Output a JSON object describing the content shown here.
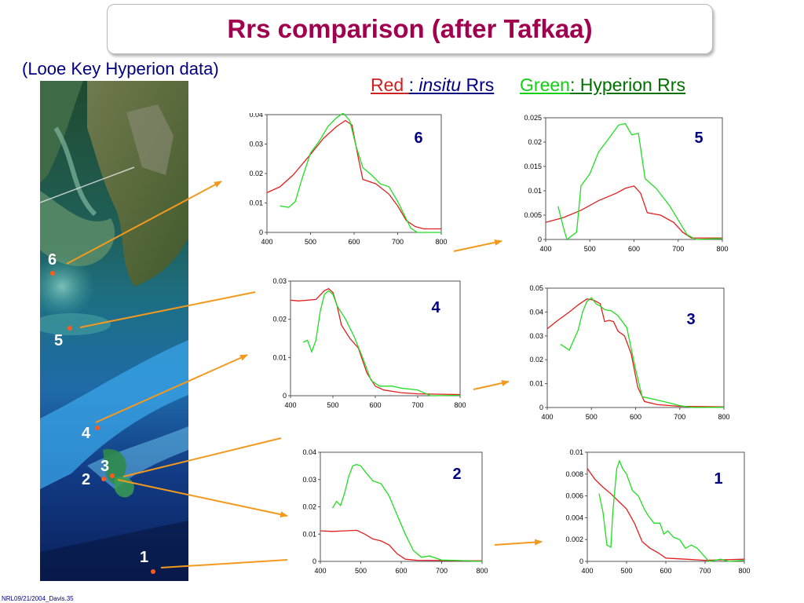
{
  "title": "Rrs comparison (after Tafkaa)",
  "subtitle": "(Looe Key Hyperion data)",
  "legend": {
    "red_word": "Red",
    "red_colon": ":",
    "red_italic": "insitu",
    "red_rest": " Rrs",
    "green_word": "Green",
    "green_colon": ":",
    "green_rest": " Hyperion Rrs"
  },
  "colors": {
    "insitu": "#e02020",
    "hyperion": "#22dd22",
    "arrow": "#f39a1e",
    "title": "#a0004e",
    "text": "#000080"
  },
  "site_labels": [
    "6",
    "5",
    "4",
    "3",
    "2",
    "1"
  ],
  "footer": "NRL09/21/2004_Davis.35",
  "chart_data": [
    {
      "id": "6",
      "type": "line",
      "label": "6",
      "x": [
        400,
        500,
        600,
        700,
        800
      ],
      "xlim": [
        400,
        800
      ],
      "ylim": [
        0,
        0.04
      ],
      "yticks": [
        "0",
        "0.01",
        "0.02",
        "0.03",
        "0.04"
      ],
      "series": [
        {
          "role": "insitu",
          "points": [
            [
              400,
              0.0135
            ],
            [
              430,
              0.0155
            ],
            [
              460,
              0.0195
            ],
            [
              500,
              0.0265
            ],
            [
              530,
              0.032
            ],
            [
              560,
              0.036
            ],
            [
              580,
              0.038
            ],
            [
              595,
              0.0365
            ],
            [
              610,
              0.025
            ],
            [
              620,
              0.018
            ],
            [
              650,
              0.0165
            ],
            [
              680,
              0.013
            ],
            [
              700,
              0.009
            ],
            [
              720,
              0.004
            ],
            [
              740,
              0.002
            ],
            [
              760,
              0.0012
            ],
            [
              800,
              0.0012
            ]
          ]
        },
        {
          "role": "hyperion",
          "points": [
            [
              430,
              0.009
            ],
            [
              450,
              0.0085
            ],
            [
              465,
              0.0105
            ],
            [
              480,
              0.018
            ],
            [
              500,
              0.027
            ],
            [
              520,
              0.031
            ],
            [
              540,
              0.036
            ],
            [
              560,
              0.039
            ],
            [
              575,
              0.0405
            ],
            [
              590,
              0.038
            ],
            [
              605,
              0.029
            ],
            [
              620,
              0.022
            ],
            [
              640,
              0.0195
            ],
            [
              660,
              0.0165
            ],
            [
              680,
              0.0155
            ],
            [
              700,
              0.0105
            ],
            [
              715,
              0.006
            ],
            [
              730,
              0.0015
            ],
            [
              745,
              0
            ],
            [
              800,
              0
            ]
          ]
        }
      ]
    },
    {
      "id": "5",
      "type": "line",
      "label": "5",
      "x": [
        400,
        500,
        600,
        700,
        800
      ],
      "xlim": [
        400,
        800
      ],
      "ylim": [
        0,
        0.025
      ],
      "yticks": [
        "0",
        "0.005",
        "0.01",
        "0.015",
        "0.02",
        "0.025"
      ],
      "series": [
        {
          "role": "insitu",
          "points": [
            [
              400,
              0.0035
            ],
            [
              440,
              0.0045
            ],
            [
              480,
              0.006
            ],
            [
              520,
              0.008
            ],
            [
              560,
              0.0095
            ],
            [
              580,
              0.0105
            ],
            [
              600,
              0.011
            ],
            [
              615,
              0.0095
            ],
            [
              630,
              0.0055
            ],
            [
              660,
              0.005
            ],
            [
              690,
              0.0035
            ],
            [
              710,
              0.0015
            ],
            [
              730,
              0.0003
            ],
            [
              760,
              0.0003
            ],
            [
              800,
              0.0003
            ]
          ]
        },
        {
          "role": "hyperion",
          "points": [
            [
              428,
              0.0068
            ],
            [
              440,
              0.0025
            ],
            [
              448,
              0
            ],
            [
              470,
              0.0015
            ],
            [
              480,
              0.011
            ],
            [
              500,
              0.0135
            ],
            [
              520,
              0.018
            ],
            [
              545,
              0.021
            ],
            [
              565,
              0.0235
            ],
            [
              580,
              0.0238
            ],
            [
              595,
              0.0215
            ],
            [
              610,
              0.0218
            ],
            [
              625,
              0.0125
            ],
            [
              650,
              0.0105
            ],
            [
              680,
              0.007
            ],
            [
              700,
              0.004
            ],
            [
              720,
              0.001
            ],
            [
              740,
              0
            ],
            [
              800,
              0.0002
            ]
          ]
        }
      ]
    },
    {
      "id": "4",
      "type": "line",
      "label": "4",
      "x": [
        400,
        500,
        600,
        700,
        800
      ],
      "xlim": [
        400,
        800
      ],
      "ylim": [
        0,
        0.03
      ],
      "yticks": [
        "0",
        "0.01",
        "0.02",
        "0.03"
      ],
      "series": [
        {
          "role": "insitu",
          "points": [
            [
              400,
              0.025
            ],
            [
              420,
              0.0248
            ],
            [
              440,
              0.025
            ],
            [
              460,
              0.0252
            ],
            [
              480,
              0.0275
            ],
            [
              490,
              0.028
            ],
            [
              500,
              0.027
            ],
            [
              510,
              0.0235
            ],
            [
              520,
              0.0185
            ],
            [
              540,
              0.015
            ],
            [
              560,
              0.0125
            ],
            [
              580,
              0.006
            ],
            [
              600,
              0.0025
            ],
            [
              620,
              0.0015
            ],
            [
              660,
              0.0008
            ],
            [
              700,
              0.0005
            ],
            [
              800,
              0.0003
            ]
          ]
        },
        {
          "role": "hyperion",
          "points": [
            [
              430,
              0.014
            ],
            [
              440,
              0.0145
            ],
            [
              450,
              0.0115
            ],
            [
              460,
              0.0145
            ],
            [
              470,
              0.022
            ],
            [
              480,
              0.0265
            ],
            [
              490,
              0.0275
            ],
            [
              500,
              0.0265
            ],
            [
              510,
              0.0235
            ],
            [
              530,
              0.02
            ],
            [
              550,
              0.0155
            ],
            [
              570,
              0.01
            ],
            [
              590,
              0.004
            ],
            [
              610,
              0.0025
            ],
            [
              640,
              0.0025
            ],
            [
              660,
              0.002
            ],
            [
              700,
              0.0015
            ],
            [
              730,
              0
            ],
            [
              800,
              0.0001
            ]
          ]
        }
      ]
    },
    {
      "id": "3",
      "type": "line",
      "label": "3",
      "x": [
        400,
        500,
        600,
        700,
        800
      ],
      "xlim": [
        400,
        800
      ],
      "ylim": [
        0,
        0.05
      ],
      "yticks": [
        "0",
        "0.01",
        "0.02",
        "0.03",
        "0.04",
        "0.05"
      ],
      "series": [
        {
          "role": "insitu",
          "points": [
            [
              400,
              0.033
            ],
            [
              420,
              0.036
            ],
            [
              450,
              0.04
            ],
            [
              470,
              0.043
            ],
            [
              490,
              0.0455
            ],
            [
              505,
              0.045
            ],
            [
              520,
              0.0435
            ],
            [
              530,
              0.036
            ],
            [
              540,
              0.0365
            ],
            [
              550,
              0.036
            ],
            [
              560,
              0.032
            ],
            [
              575,
              0.03
            ],
            [
              590,
              0.0225
            ],
            [
              605,
              0.0085
            ],
            [
              620,
              0.0025
            ],
            [
              650,
              0.0012
            ],
            [
              700,
              0.0005
            ],
            [
              800,
              0.0003
            ]
          ]
        },
        {
          "role": "hyperion",
          "points": [
            [
              430,
              0.0265
            ],
            [
              450,
              0.024
            ],
            [
              470,
              0.0325
            ],
            [
              480,
              0.04
            ],
            [
              490,
              0.0445
            ],
            [
              500,
              0.046
            ],
            [
              510,
              0.0435
            ],
            [
              520,
              0.0425
            ],
            [
              530,
              0.041
            ],
            [
              545,
              0.0405
            ],
            [
              560,
              0.0385
            ],
            [
              580,
              0.0335
            ],
            [
              600,
              0.016
            ],
            [
              615,
              0.0045
            ],
            [
              640,
              0.0035
            ],
            [
              670,
              0.0022
            ],
            [
              700,
              0.0008
            ],
            [
              730,
              0
            ],
            [
              800,
              0.0001
            ]
          ]
        }
      ]
    },
    {
      "id": "2",
      "type": "line",
      "label": "2",
      "x": [
        400,
        500,
        600,
        700,
        800
      ],
      "xlim": [
        400,
        800
      ],
      "ylim": [
        0,
        0.04
      ],
      "yticks": [
        "0",
        "0.01",
        "0.02",
        "0.03",
        "0.04"
      ],
      "series": [
        {
          "role": "insitu",
          "points": [
            [
              400,
              0.0112
            ],
            [
              430,
              0.011
            ],
            [
              460,
              0.0112
            ],
            [
              490,
              0.0114
            ],
            [
              510,
              0.01
            ],
            [
              530,
              0.0082
            ],
            [
              550,
              0.0075
            ],
            [
              570,
              0.006
            ],
            [
              590,
              0.0028
            ],
            [
              610,
              0.0008
            ],
            [
              640,
              0.0004
            ],
            [
              800,
              0.0002
            ]
          ]
        },
        {
          "role": "hyperion",
          "points": [
            [
              430,
              0.0195
            ],
            [
              440,
              0.022
            ],
            [
              450,
              0.0205
            ],
            [
              460,
              0.025
            ],
            [
              470,
              0.031
            ],
            [
              480,
              0.035
            ],
            [
              490,
              0.0355
            ],
            [
              500,
              0.035
            ],
            [
              510,
              0.033
            ],
            [
              530,
              0.0295
            ],
            [
              550,
              0.0285
            ],
            [
              570,
              0.024
            ],
            [
              590,
              0.017
            ],
            [
              610,
              0.01
            ],
            [
              630,
              0.004
            ],
            [
              650,
              0.0015
            ],
            [
              670,
              0.002
            ],
            [
              700,
              0.0005
            ],
            [
              730,
              0.0004
            ],
            [
              800,
              0
            ]
          ]
        }
      ]
    },
    {
      "id": "1",
      "type": "line",
      "label": "1",
      "x": [
        400,
        500,
        600,
        700,
        800
      ],
      "xlim": [
        400,
        800
      ],
      "ylim": [
        0,
        0.01
      ],
      "yticks": [
        "0",
        "0.002",
        "0.004",
        "0.006",
        "0.008",
        "0.01"
      ],
      "series": [
        {
          "role": "insitu",
          "points": [
            [
              400,
              0.0085
            ],
            [
              420,
              0.0075
            ],
            [
              440,
              0.0068
            ],
            [
              460,
              0.0062
            ],
            [
              480,
              0.0055
            ],
            [
              500,
              0.0048
            ],
            [
              520,
              0.0035
            ],
            [
              540,
              0.0018
            ],
            [
              560,
              0.0012
            ],
            [
              580,
              0.0008
            ],
            [
              600,
              0.0003
            ],
            [
              650,
              0.0002
            ],
            [
              700,
              0.0001
            ],
            [
              800,
              0.0002
            ]
          ]
        },
        {
          "role": "hyperion",
          "points": [
            [
              430,
              0.0062
            ],
            [
              440,
              0.0045
            ],
            [
              450,
              0.0015
            ],
            [
              460,
              0.0013
            ],
            [
              465,
              0.0045
            ],
            [
              475,
              0.0085
            ],
            [
              482,
              0.0092
            ],
            [
              490,
              0.0085
            ],
            [
              500,
              0.008
            ],
            [
              515,
              0.0065
            ],
            [
              530,
              0.006
            ],
            [
              545,
              0.0048
            ],
            [
              555,
              0.0042
            ],
            [
              570,
              0.0035
            ],
            [
              585,
              0.0035
            ],
            [
              595,
              0.0025
            ],
            [
              605,
              0.0028
            ],
            [
              620,
              0.0022
            ],
            [
              635,
              0.002
            ],
            [
              650,
              0.0012
            ],
            [
              665,
              0.0015
            ],
            [
              680,
              0.0012
            ],
            [
              695,
              0.0006
            ],
            [
              710,
              0
            ],
            [
              740,
              0.0002
            ],
            [
              760,
              0
            ],
            [
              800,
              0.0001
            ]
          ]
        }
      ]
    }
  ]
}
